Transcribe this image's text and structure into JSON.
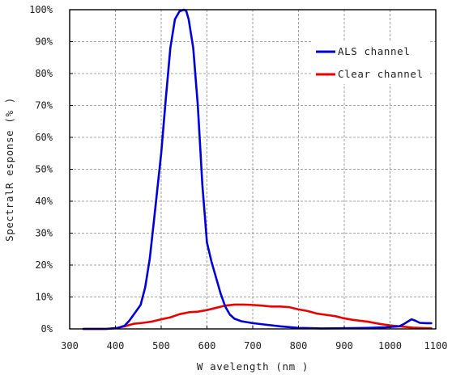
{
  "chart_data": {
    "type": "line",
    "title": "",
    "xlabel": "W avelength (nm )",
    "ylabel": "SpectralR esponse (% )",
    "xlim": [
      300,
      1100
    ],
    "ylim": [
      0,
      100
    ],
    "x_ticks": [
      300,
      400,
      500,
      600,
      700,
      800,
      900,
      1000,
      1100
    ],
    "x_tick_labels": [
      "300",
      "400",
      "500",
      "600",
      "700",
      "800",
      "900",
      "1000",
      "1100"
    ],
    "y_ticks": [
      0,
      10,
      20,
      30,
      40,
      50,
      60,
      70,
      80,
      90,
      100
    ],
    "y_tick_labels": [
      "0%",
      "10%",
      "20%",
      "30%",
      "40%",
      "50%",
      "60%",
      "70%",
      "80%",
      "90%",
      "100%"
    ],
    "grid": true,
    "legend_position": "top-right",
    "series": [
      {
        "name": "ALS channel",
        "color": "#0000dd",
        "points": [
          [
            330,
            0
          ],
          [
            380,
            0
          ],
          [
            405,
            0.3
          ],
          [
            420,
            1
          ],
          [
            430,
            2.5
          ],
          [
            440,
            4.5
          ],
          [
            455,
            7.5
          ],
          [
            465,
            13
          ],
          [
            475,
            22
          ],
          [
            485,
            35
          ],
          [
            500,
            55
          ],
          [
            510,
            72
          ],
          [
            520,
            88
          ],
          [
            530,
            97
          ],
          [
            540,
            99.5
          ],
          [
            550,
            100
          ],
          [
            555,
            99.5
          ],
          [
            560,
            97
          ],
          [
            570,
            88
          ],
          [
            580,
            70
          ],
          [
            590,
            45
          ],
          [
            600,
            27
          ],
          [
            610,
            21
          ],
          [
            620,
            16
          ],
          [
            630,
            11
          ],
          [
            640,
            7
          ],
          [
            650,
            4.5
          ],
          [
            660,
            3.2
          ],
          [
            675,
            2.4
          ],
          [
            700,
            1.8
          ],
          [
            730,
            1.3
          ],
          [
            760,
            0.8
          ],
          [
            800,
            0.3
          ],
          [
            850,
            0.15
          ],
          [
            900,
            0.2
          ],
          [
            950,
            0.3
          ],
          [
            990,
            0.5
          ],
          [
            1020,
            0.8
          ],
          [
            1030,
            1.5
          ],
          [
            1040,
            2.4
          ],
          [
            1047,
            3.0
          ],
          [
            1055,
            2.6
          ],
          [
            1065,
            1.9
          ],
          [
            1080,
            1.8
          ],
          [
            1090,
            1.8
          ]
        ]
      },
      {
        "name": "Clear channel",
        "color": "#ee0000",
        "points": [
          [
            330,
            0
          ],
          [
            380,
            0
          ],
          [
            400,
            0.2
          ],
          [
            420,
            0.8
          ],
          [
            440,
            1.6
          ],
          [
            460,
            1.9
          ],
          [
            480,
            2.3
          ],
          [
            500,
            3.0
          ],
          [
            520,
            3.6
          ],
          [
            540,
            4.6
          ],
          [
            560,
            5.2
          ],
          [
            580,
            5.4
          ],
          [
            600,
            5.9
          ],
          [
            620,
            6.6
          ],
          [
            640,
            7.3
          ],
          [
            660,
            7.6
          ],
          [
            680,
            7.6
          ],
          [
            700,
            7.5
          ],
          [
            720,
            7.3
          ],
          [
            740,
            7.0
          ],
          [
            760,
            7.0
          ],
          [
            780,
            6.8
          ],
          [
            800,
            6.1
          ],
          [
            820,
            5.6
          ],
          [
            840,
            4.8
          ],
          [
            860,
            4.4
          ],
          [
            880,
            4.0
          ],
          [
            900,
            3.3
          ],
          [
            920,
            2.8
          ],
          [
            950,
            2.3
          ],
          [
            980,
            1.5
          ],
          [
            1000,
            1.1
          ],
          [
            1020,
            0.8
          ],
          [
            1050,
            0.4
          ],
          [
            1080,
            0.2
          ],
          [
            1090,
            0.2
          ]
        ]
      }
    ]
  }
}
